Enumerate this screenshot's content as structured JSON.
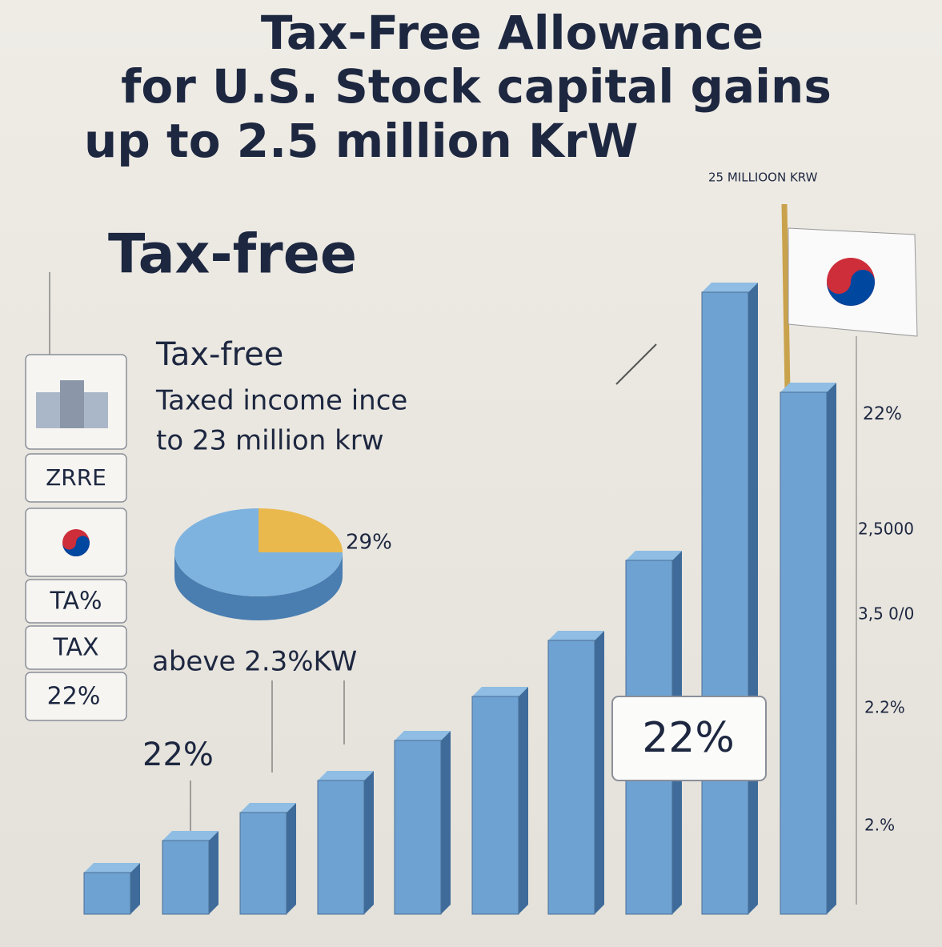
{
  "header": {
    "title_lines": [
      "Tax-Free Allowance",
      "for U.S. Stock capital gains",
      "up to 2.5 million KrW"
    ]
  },
  "top_label": "25 MILLIOON KRW",
  "heading": "Tax-free",
  "info": {
    "title": "Tax-free",
    "lines": [
      "Taxed income ince",
      "to 23 million krw"
    ]
  },
  "pie_label": "29%",
  "above_label": "abeve 2.3%KW",
  "left_rate": "22%",
  "side_boxes": [
    "ZRRE",
    "TA%",
    "TAX",
    "22%"
  ],
  "callout": "22%",
  "right_labels": [
    "22%",
    "2,5000",
    "3,5 0/0",
    "2.2%",
    "2.%"
  ]
}
